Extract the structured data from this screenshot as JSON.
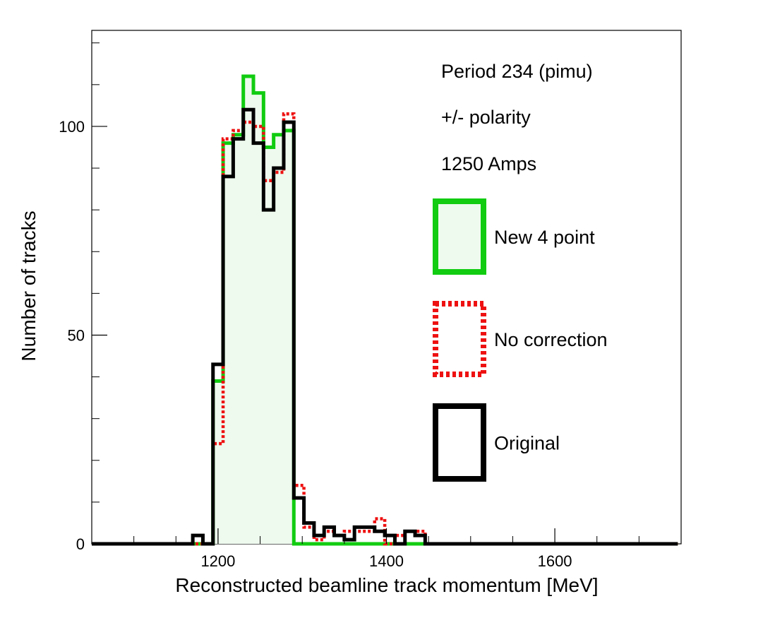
{
  "chart_data": {
    "type": "histogram",
    "xlabel": "Reconstructed beamline track momentum [MeV]",
    "ylabel": "Number of tracks",
    "xlim": [
      1050,
      1750
    ],
    "ylim": [
      0,
      123
    ],
    "bin_width": 12,
    "bin_start": 1050,
    "x_ticks": [
      1200,
      1400,
      1600
    ],
    "x_tick_labels": [
      "1200",
      "1400",
      "1600"
    ],
    "y_ticks": [
      0,
      50,
      100
    ],
    "y_tick_labels": [
      "0",
      "50",
      "100"
    ],
    "annotations": [
      "Period 234 (pimu)",
      "+/- polarity",
      "1250 Amps"
    ],
    "legend_position": "right",
    "series": [
      {
        "name": "New 4 point",
        "color": "#11cc11",
        "fill": "#eefaee",
        "style": "solid",
        "values": [
          0,
          0,
          0,
          0,
          0,
          0,
          0,
          0,
          0,
          0,
          0,
          0,
          39,
          96,
          98,
          112,
          108,
          95,
          98,
          99,
          0,
          0,
          0,
          0,
          0,
          0,
          0,
          0,
          0,
          0,
          0,
          0,
          0,
          0,
          0,
          0,
          0,
          0,
          0,
          0,
          0,
          0,
          0,
          0,
          0,
          0,
          0,
          0,
          0,
          0,
          0,
          0,
          0,
          0,
          0,
          0,
          0,
          0
        ]
      },
      {
        "name": "No correction",
        "color": "#ee1111",
        "style": "dotted",
        "values": [
          0,
          0,
          0,
          0,
          0,
          0,
          0,
          0,
          0,
          0,
          0,
          0,
          24,
          97,
          99,
          101,
          100,
          87,
          89,
          103,
          14,
          4,
          1,
          3,
          2,
          3,
          3,
          3,
          6,
          0,
          2,
          3,
          3,
          0,
          0,
          0,
          0,
          0,
          0,
          0,
          0,
          0,
          0,
          0,
          0,
          0,
          0,
          0,
          0,
          0,
          0,
          0,
          0,
          0,
          0,
          0,
          0,
          0
        ]
      },
      {
        "name": "Original",
        "color": "#000000",
        "style": "solid",
        "values": [
          0,
          0,
          0,
          0,
          0,
          0,
          0,
          0,
          0,
          0,
          2,
          0,
          43,
          88,
          97,
          104,
          96,
          80,
          90,
          101,
          11,
          5,
          2,
          4,
          2,
          1,
          4,
          4,
          3,
          2,
          0,
          3,
          2,
          0,
          0,
          0,
          0,
          0,
          0,
          0,
          0,
          0,
          0,
          0,
          0,
          0,
          0,
          0,
          0,
          0,
          0,
          0,
          0,
          0,
          0,
          0,
          0,
          0
        ]
      }
    ]
  }
}
